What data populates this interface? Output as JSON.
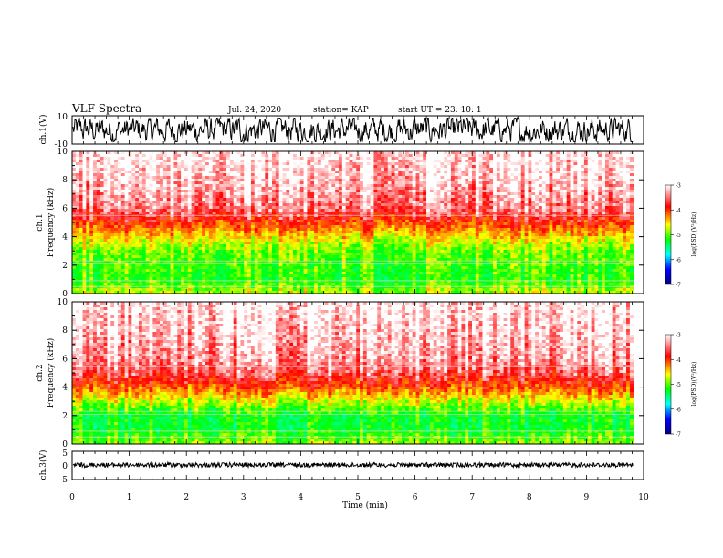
{
  "header": {
    "title": "VLF Spectra",
    "date": "Jul. 24, 2020",
    "station": "station= KAP",
    "start": "start  UT =   23: 10: 1"
  },
  "colorbar": {
    "label": "log(PSD)(V²/Hz)",
    "ticks": [
      "-3",
      "-4",
      "-5",
      "-6",
      "-7"
    ],
    "colors": [
      "#ffffff",
      "#ff0000",
      "#ffff00",
      "#00ff00",
      "#00ffff",
      "#0000ff",
      "#000080"
    ]
  },
  "chart_data": [
    {
      "type": "line",
      "name": "ch1-waveform",
      "ylabel": "ch.1(V)",
      "ylim": [
        -10,
        10
      ],
      "yticks": [
        "10",
        "-10"
      ],
      "xlim": [
        0,
        10
      ],
      "description_values": "noisy voltage trace, roughly -8 to +9 V"
    },
    {
      "type": "heatmap",
      "name": "ch1-spectrogram",
      "ylabel": "ch.1\nFrequency (kHz)",
      "ylim": [
        0,
        10
      ],
      "yticks": [
        "0",
        "2",
        "4",
        "6",
        "8",
        "10"
      ],
      "xlim": [
        0,
        9.82
      ],
      "zlim": [
        -7,
        -3
      ],
      "band_profile": [
        {
          "f_khz": 0,
          "log_psd": -4.4
        },
        {
          "f_khz": 1,
          "log_psd": -4.8
        },
        {
          "f_khz": 2,
          "log_psd": -4.7
        },
        {
          "f_khz": 3,
          "log_psd": -4.6
        },
        {
          "f_khz": 4,
          "log_psd": -4.2
        },
        {
          "f_khz": 5,
          "log_psd": -3.7
        },
        {
          "f_khz": 6,
          "log_psd": -3.3
        },
        {
          "f_khz": 8,
          "log_psd": -3.1
        },
        {
          "f_khz": 10,
          "log_psd": -3.0
        }
      ]
    },
    {
      "type": "heatmap",
      "name": "ch2-spectrogram",
      "ylabel": "ch.2\nFrequency (kHz)",
      "ylim": [
        0,
        10
      ],
      "yticks": [
        "0",
        "2",
        "4",
        "6",
        "8",
        "10"
      ],
      "xlim": [
        0,
        9.82
      ],
      "zlim": [
        -7,
        -3
      ],
      "band_profile": [
        {
          "f_khz": 0,
          "log_psd": -4.5
        },
        {
          "f_khz": 1,
          "log_psd": -4.9
        },
        {
          "f_khz": 2,
          "log_psd": -4.9
        },
        {
          "f_khz": 3,
          "log_psd": -4.4
        },
        {
          "f_khz": 4,
          "log_psd": -3.8
        },
        {
          "f_khz": 5,
          "log_psd": -3.4
        },
        {
          "f_khz": 6,
          "log_psd": -3.2
        },
        {
          "f_khz": 8,
          "log_psd": -3.1
        },
        {
          "f_khz": 10,
          "log_psd": -3.0
        }
      ]
    },
    {
      "type": "line",
      "name": "ch3-waveform",
      "ylabel": "ch.3(V)",
      "ylim": [
        -5,
        5
      ],
      "yticks": [
        "5",
        "0",
        "-5"
      ],
      "xlim": [
        0,
        10
      ],
      "description_values": "nearly constant trace near 0 V with small fluctuations"
    }
  ],
  "xaxis": {
    "label": "Time (min)",
    "ticks": [
      "0",
      "1",
      "2",
      "3",
      "4",
      "5",
      "6",
      "7",
      "8",
      "9",
      "10"
    ],
    "range": [
      0,
      10
    ]
  }
}
